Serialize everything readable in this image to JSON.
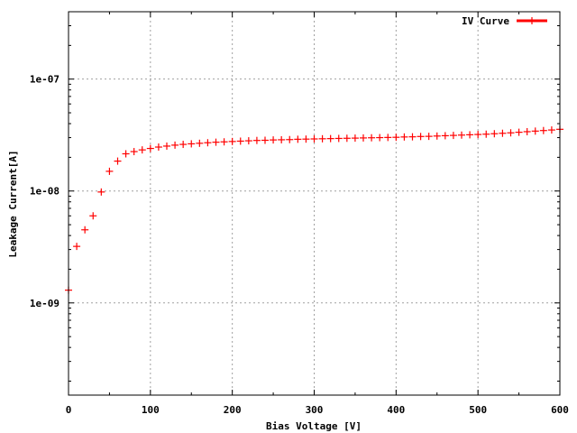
{
  "chart_data": {
    "type": "scatter",
    "title": "",
    "xlabel": "Bias Voltage [V]",
    "ylabel": "Leakage Current[A]",
    "xlim": [
      0,
      600
    ],
    "ylim": [
      1.5e-10,
      4e-07
    ],
    "yscale": "log",
    "grid": true,
    "legend_position": "top-right",
    "x_ticks": [
      0,
      100,
      200,
      300,
      400,
      500,
      600
    ],
    "x_tick_labels": [
      "0",
      "100",
      "200",
      "300",
      "400",
      "500",
      "600"
    ],
    "y_ticks": [
      1e-09,
      1e-08,
      1e-07
    ],
    "y_tick_labels": [
      "1e-09",
      "1e-08",
      "1e-07"
    ],
    "series": [
      {
        "name": "IV Curve",
        "color": "#ff0000",
        "marker": "plus",
        "x": [
          0,
          10,
          20,
          30,
          40,
          50,
          60,
          70,
          80,
          90,
          100,
          110,
          120,
          130,
          140,
          150,
          160,
          170,
          180,
          190,
          200,
          210,
          220,
          230,
          240,
          250,
          260,
          270,
          280,
          290,
          300,
          310,
          320,
          330,
          340,
          350,
          360,
          370,
          380,
          390,
          400,
          410,
          420,
          430,
          440,
          450,
          460,
          470,
          480,
          490,
          500,
          510,
          520,
          530,
          540,
          550,
          560,
          570,
          580,
          590,
          600
        ],
        "y": [
          1.3e-09,
          3.2e-09,
          4.5e-09,
          6e-09,
          9.8e-09,
          1.5e-08,
          1.85e-08,
          2.15e-08,
          2.25e-08,
          2.33e-08,
          2.4e-08,
          2.47e-08,
          2.52e-08,
          2.57e-08,
          2.61e-08,
          2.64e-08,
          2.67e-08,
          2.7e-08,
          2.73e-08,
          2.75e-08,
          2.77e-08,
          2.79e-08,
          2.81e-08,
          2.83e-08,
          2.84e-08,
          2.86e-08,
          2.87e-08,
          2.88e-08,
          2.9e-08,
          2.91e-08,
          2.92e-08,
          2.93e-08,
          2.94e-08,
          2.95e-08,
          2.96e-08,
          2.97e-08,
          2.98e-08,
          2.99e-08,
          3e-08,
          3.01e-08,
          3.02e-08,
          3.04e-08,
          3.05e-08,
          3.07e-08,
          3.08e-08,
          3.1e-08,
          3.12e-08,
          3.14e-08,
          3.16e-08,
          3.18e-08,
          3.2e-08,
          3.22e-08,
          3.25e-08,
          3.28e-08,
          3.31e-08,
          3.35e-08,
          3.39e-08,
          3.43e-08,
          3.47e-08,
          3.51e-08,
          3.56e-08
        ]
      }
    ]
  }
}
